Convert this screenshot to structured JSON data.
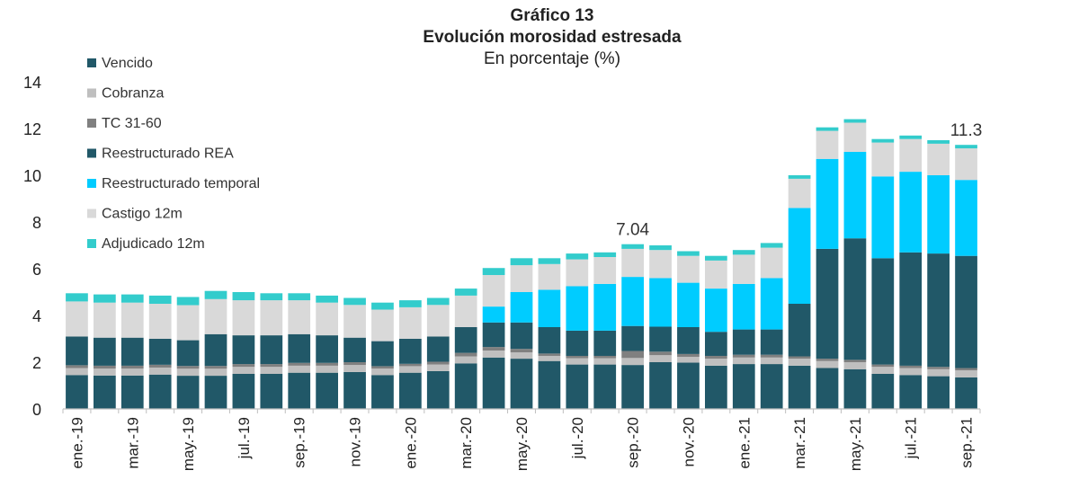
{
  "chart_data": {
    "type": "bar",
    "stacked": true,
    "title": "Gráfico 13",
    "subtitle": "Evolución morosidad estresada",
    "units": "En porcentaje (%)",
    "xlabel": "",
    "ylabel": "",
    "ylim": [
      0,
      14
    ],
    "yticks": [
      0,
      2,
      4,
      6,
      8,
      10,
      12,
      14
    ],
    "grid": false,
    "legend_position": "top-left",
    "categories": [
      "ene.-19",
      "feb.-19",
      "mar.-19",
      "abr.-19",
      "may.-19",
      "jun.-19",
      "jul.-19",
      "ago.-19",
      "sep.-19",
      "oct.-19",
      "nov.-19",
      "dic.-19",
      "ene.-20",
      "feb.-20",
      "mar.-20",
      "abr.-20",
      "may.-20",
      "jun.-20",
      "jul.-20",
      "ago.-20",
      "sep.-20",
      "oct.-20",
      "nov.-20",
      "dic.-20",
      "ene.-21",
      "feb.-21",
      "mar.-21",
      "abr.-21",
      "may.-21",
      "jun.-21",
      "jul.-21",
      "ago.-21",
      "sep.-21"
    ],
    "tick_labels": [
      "ene.-19",
      "",
      "mar.-19",
      "",
      "may.-19",
      "",
      "jul.-19",
      "",
      "sep.-19",
      "",
      "nov.-19",
      "",
      "ene.-20",
      "",
      "mar.-20",
      "",
      "may.-20",
      "",
      "jul.-20",
      "",
      "sep.-20",
      "",
      "nov.-20",
      "",
      "ene.-21",
      "",
      "mar.-21",
      "",
      "may.-21",
      "",
      "jul.-21",
      "",
      "sep.-21"
    ],
    "series": [
      {
        "name": "Vencido",
        "color": "#215868",
        "values": [
          1.45,
          1.43,
          1.43,
          1.47,
          1.42,
          1.42,
          1.5,
          1.5,
          1.55,
          1.55,
          1.58,
          1.45,
          1.55,
          1.62,
          1.95,
          2.2,
          2.15,
          2.05,
          1.9,
          1.9,
          1.88,
          2.0,
          1.98,
          1.85,
          1.92,
          1.92,
          1.85,
          1.75,
          1.7,
          1.5,
          1.45,
          1.4,
          1.35
        ]
      },
      {
        "name": "Cobranza",
        "color": "#BFBFBF",
        "values": [
          0.3,
          0.3,
          0.3,
          0.3,
          0.3,
          0.3,
          0.3,
          0.3,
          0.3,
          0.3,
          0.3,
          0.28,
          0.28,
          0.28,
          0.3,
          0.3,
          0.27,
          0.22,
          0.27,
          0.27,
          0.3,
          0.3,
          0.25,
          0.3,
          0.28,
          0.28,
          0.3,
          0.3,
          0.3,
          0.3,
          0.3,
          0.3,
          0.3
        ]
      },
      {
        "name": "TC 31-60",
        "color": "#808080",
        "values": [
          0.12,
          0.12,
          0.12,
          0.12,
          0.12,
          0.12,
          0.12,
          0.12,
          0.12,
          0.12,
          0.12,
          0.1,
          0.1,
          0.12,
          0.15,
          0.15,
          0.15,
          0.1,
          0.1,
          0.1,
          0.3,
          0.15,
          0.12,
          0.12,
          0.12,
          0.12,
          0.1,
          0.1,
          0.1,
          0.1,
          0.1,
          0.1,
          0.1
        ]
      },
      {
        "name": "Reestructurado REA",
        "color": "#215868",
        "values": [
          1.23,
          1.2,
          1.2,
          1.11,
          1.1,
          1.36,
          1.23,
          1.23,
          1.23,
          1.18,
          1.05,
          1.07,
          1.07,
          1.08,
          1.1,
          1.05,
          1.13,
          1.13,
          1.08,
          1.08,
          1.07,
          1.07,
          1.15,
          1.03,
          1.08,
          1.08,
          2.25,
          4.7,
          5.2,
          4.55,
          4.85,
          4.85,
          4.8
        ]
      },
      {
        "name": "Reestructurado temporal",
        "color": "#00CCFF",
        "values": [
          0,
          0,
          0,
          0,
          0,
          0,
          0,
          0,
          0,
          0,
          0,
          0,
          0,
          0,
          0,
          0.68,
          1.3,
          1.6,
          1.9,
          2.0,
          2.1,
          2.08,
          1.9,
          1.85,
          1.95,
          2.2,
          4.1,
          3.85,
          3.7,
          3.5,
          3.45,
          3.35,
          3.25
        ]
      },
      {
        "name": "Castigo 12m",
        "color": "#D9D9D9",
        "values": [
          1.5,
          1.5,
          1.5,
          1.5,
          1.5,
          1.5,
          1.5,
          1.5,
          1.45,
          1.4,
          1.4,
          1.35,
          1.35,
          1.35,
          1.35,
          1.35,
          1.15,
          1.1,
          1.15,
          1.15,
          1.2,
          1.2,
          1.15,
          1.2,
          1.25,
          1.3,
          1.25,
          1.2,
          1.25,
          1.45,
          1.4,
          1.35,
          1.35
        ]
      },
      {
        "name": "Adjudicado 12m",
        "color": "#33CCCC",
        "values": [
          0.35,
          0.35,
          0.35,
          0.35,
          0.35,
          0.35,
          0.35,
          0.3,
          0.3,
          0.3,
          0.3,
          0.3,
          0.3,
          0.3,
          0.3,
          0.3,
          0.3,
          0.25,
          0.25,
          0.2,
          0.2,
          0.2,
          0.2,
          0.2,
          0.2,
          0.2,
          0.15,
          0.15,
          0.15,
          0.15,
          0.15,
          0.15,
          0.15
        ]
      }
    ],
    "annotations": [
      {
        "index": 20,
        "text": "7.04"
      },
      {
        "index": 32,
        "text": "11.3"
      }
    ]
  }
}
